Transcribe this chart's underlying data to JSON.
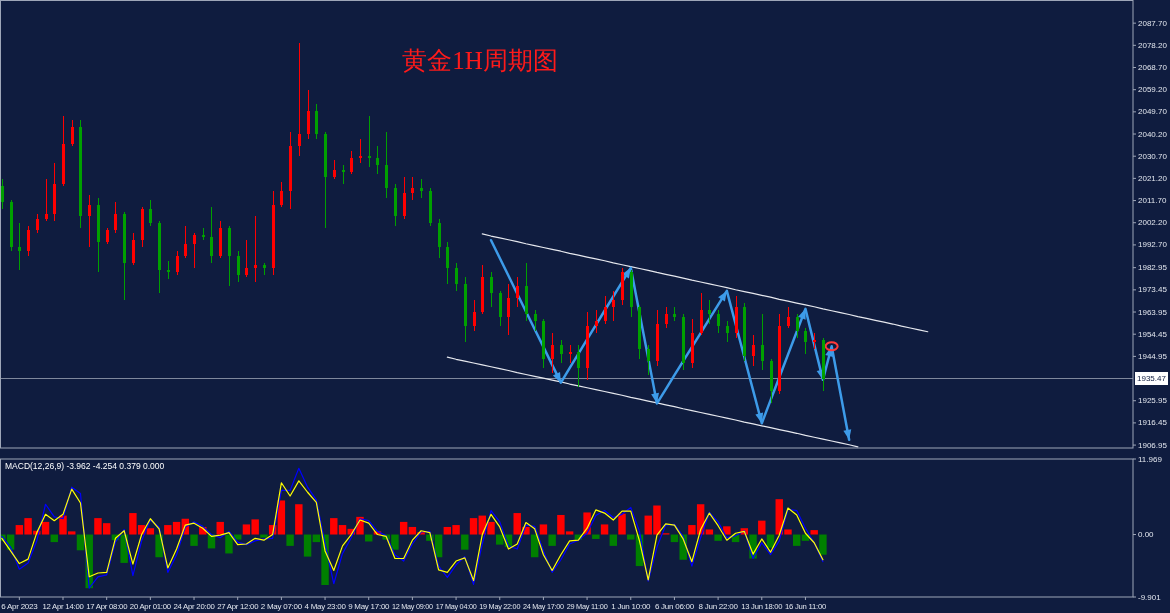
{
  "chart_data": [
    {
      "type": "candlestick",
      "title": "黄金1H周期图",
      "categories": [
        null,
        null,
        null,
        null,
        null,
        null,
        null,
        null,
        null,
        null,
        null,
        null,
        null,
        null,
        null,
        null,
        null,
        null,
        null,
        null,
        null,
        null,
        null,
        null,
        null,
        null,
        null,
        null,
        null,
        null,
        null,
        null,
        null,
        null,
        null,
        null,
        null,
        null,
        null,
        null,
        null,
        null,
        null,
        null,
        null,
        null,
        null,
        null,
        null,
        null,
        null,
        null,
        null,
        null,
        null,
        null,
        null,
        null,
        null,
        null,
        null,
        null,
        null,
        null,
        null,
        null,
        null,
        null,
        null,
        null,
        null,
        null,
        null,
        null,
        null,
        null,
        null,
        null,
        null,
        null,
        null,
        null,
        null,
        null,
        null,
        null,
        null,
        null,
        null,
        null,
        null,
        null,
        null,
        null,
        null,
        null,
        null,
        null,
        null,
        null,
        null,
        null,
        null,
        null,
        null,
        null,
        null,
        null,
        null,
        null,
        null,
        null,
        null,
        null,
        null,
        null,
        null,
        null,
        null,
        null,
        null,
        null,
        null,
        null,
        null,
        null,
        null,
        null,
        null,
        null
      ],
      "ohlc": [
        [
          2018,
          2021,
          2008,
          2011
        ],
        [
          2011,
          2012,
          1990,
          1992
        ],
        [
          1992,
          2002,
          1982,
          1990
        ],
        [
          1990,
          2001,
          1988,
          1999
        ],
        [
          1999,
          2006,
          1998,
          2004
        ],
        [
          2004,
          2021,
          2003,
          2006
        ],
        [
          2006,
          2028,
          2003,
          2019
        ],
        [
          2019,
          2048,
          2018,
          2036
        ],
        [
          2036,
          2046,
          2035,
          2043
        ],
        [
          2043,
          2046,
          2000,
          2005
        ],
        [
          2005,
          2014,
          1992,
          2010
        ],
        [
          2010,
          2013,
          1981,
          1994
        ],
        [
          1994,
          2000,
          1993,
          1999
        ],
        [
          1999,
          2011,
          1998,
          2006
        ],
        [
          2006,
          2007,
          1969,
          1985
        ],
        [
          1985,
          1998,
          1984,
          1995
        ],
        [
          1995,
          2009,
          1992,
          2008
        ],
        [
          2008,
          2012,
          2001,
          2002
        ],
        [
          2002,
          2003,
          1972,
          1982
        ],
        [
          1982,
          1986,
          1978,
          1981
        ],
        [
          1981,
          1990,
          1980,
          1988
        ],
        [
          1988,
          2001,
          1987,
          1993
        ],
        [
          1993,
          1998,
          1983,
          1997
        ],
        [
          1997,
          2000,
          1995,
          1996
        ],
        [
          1996,
          2009,
          1985,
          1988
        ],
        [
          1988,
          2003,
          1987,
          2000
        ],
        [
          2000,
          2001,
          1975,
          1988
        ],
        [
          1988,
          1990,
          1977,
          1980
        ],
        [
          1980,
          1995,
          1979,
          1983
        ],
        [
          1983,
          2005,
          1977,
          1984
        ],
        [
          1984,
          1985,
          1980,
          1983
        ],
        [
          1983,
          2016,
          1980,
          2010
        ],
        [
          2010,
          2019.5,
          2009,
          2016
        ],
        [
          2016,
          2041,
          2008,
          2035
        ],
        [
          2035,
          2079,
          2031,
          2040
        ],
        [
          2040,
          2059,
          2038,
          2050
        ],
        [
          2050,
          2053,
          2038,
          2040
        ],
        [
          2040,
          2041,
          2000,
          2022
        ],
        [
          2022,
          2029,
          2021,
          2025
        ],
        [
          2025,
          2027,
          2019,
          2024
        ],
        [
          2024,
          2033,
          2023,
          2030
        ],
        [
          2030,
          2038,
          2028,
          2031
        ],
        [
          2031,
          2048,
          2026,
          2030
        ],
        [
          2030,
          2035,
          2023,
          2027
        ],
        [
          2027,
          2041,
          2013,
          2017
        ],
        [
          2017,
          2019,
          2001,
          2005
        ],
        [
          2005,
          2022,
          2004,
          2015
        ],
        [
          2015,
          2022,
          2012,
          2017
        ],
        [
          2017,
          2021,
          2013,
          2016
        ],
        [
          2016,
          2017,
          2001,
          2002
        ],
        [
          2002,
          2004,
          1987,
          1992
        ],
        [
          1992,
          1994,
          1976,
          1983
        ],
        [
          1983,
          1985,
          1973,
          1976
        ],
        [
          1976,
          1979,
          1951,
          1958
        ],
        [
          1958,
          1969,
          1956,
          1964
        ],
        [
          1964,
          1984,
          1963,
          1979
        ],
        [
          1979,
          1981,
          1966,
          1972
        ],
        [
          1972,
          1973,
          1958,
          1962
        ],
        [
          1962,
          1976,
          1954,
          1970
        ],
        [
          1970,
          1979,
          1966,
          1975
        ],
        [
          1975,
          1985,
          1960,
          1963
        ],
        [
          1963,
          1965,
          1956,
          1960
        ],
        [
          1960,
          1961,
          1940,
          1944
        ],
        [
          1944,
          1955,
          1938,
          1950
        ],
        [
          1950,
          1952,
          1942,
          1946
        ],
        [
          1946,
          1950,
          1942,
          1947
        ],
        [
          1947,
          1950,
          1932,
          1940
        ],
        [
          1940,
          1964,
          1935,
          1958
        ],
        [
          1958,
          1965,
          1955,
          1960
        ],
        [
          1960,
          1971,
          1959,
          1966
        ],
        [
          1966,
          1973,
          1960,
          1969
        ],
        [
          1969,
          1983,
          1967,
          1981
        ],
        [
          1981,
          1982,
          1962,
          1966
        ],
        [
          1966,
          1967,
          1944,
          1948
        ],
        [
          1948,
          1950,
          1937,
          1943
        ],
        [
          1943,
          1965,
          1941,
          1959
        ],
        [
          1959,
          1966,
          1957,
          1963
        ],
        [
          1963,
          1966,
          1960,
          1962
        ],
        [
          1962,
          1963,
          1939,
          1942
        ],
        [
          1942,
          1961,
          1940,
          1955
        ],
        [
          1955,
          1972,
          1954,
          1965
        ],
        [
          1965,
          1969,
          1959,
          1963
        ],
        [
          1963,
          1965,
          1955,
          1958
        ],
        [
          1958,
          1960,
          1951,
          1955
        ],
        [
          1955,
          1971,
          1953,
          1966
        ],
        [
          1966,
          1968,
          1943,
          1945
        ],
        [
          1945,
          1954,
          1941,
          1950
        ],
        [
          1950,
          1963,
          1939,
          1943
        ],
        [
          1943,
          1944,
          1925,
          1930
        ],
        [
          1930,
          1963,
          1929,
          1958
        ],
        [
          1958,
          1966,
          1957,
          1962
        ],
        [
          1962,
          1963,
          1953,
          1956
        ],
        [
          1956,
          1957,
          1946,
          1951
        ],
        [
          1951,
          1955,
          1948,
          1952
        ],
        [
          1952,
          1953,
          1930,
          1935.47
        ],
        null,
        null,
        null,
        null,
        null,
        null,
        null,
        null,
        null,
        null,
        null,
        null,
        null,
        null,
        null,
        null,
        null,
        null,
        null,
        null,
        null,
        null,
        null,
        null,
        null,
        null,
        null,
        null,
        null,
        null,
        null,
        null,
        null,
        null,
        null
      ],
      "colors": [
        "#00a000",
        "#00a000",
        "#00a000",
        "#ff0000",
        "#ff0000",
        "#ff0000",
        "#ff0000",
        "#ff0000",
        "#ff0000",
        "#00a000",
        "#ff0000",
        "#00a000",
        "#ff0000",
        "#ff0000",
        "#00a000",
        "#ff0000",
        "#ff0000",
        "#00a000",
        "#00a000",
        "#00a000",
        "#ff0000",
        "#ff0000",
        "#ff0000",
        "#00a000",
        "#00a000",
        "#ff0000",
        "#00a000",
        "#00a000",
        "#ff0000",
        "#ff0000",
        "#00a000",
        "#ff0000",
        "#ff0000",
        "#ff0000",
        "#ff0000",
        "#ff0000",
        "#00a000",
        "#00a000",
        "#ff0000",
        "#00a000",
        "#ff0000",
        "#ff0000",
        "#00a000",
        "#00a000",
        "#00a000",
        "#00a000",
        "#ff0000",
        "#ff0000",
        "#00a000",
        "#00a000",
        "#00a000",
        "#00a000",
        "#00a000",
        "#00a000",
        "#ff0000",
        "#ff0000",
        "#00a000",
        "#00a000",
        "#ff0000",
        "#ff0000",
        "#00a000",
        "#00a000",
        "#00a000",
        "#ff0000",
        "#00a000",
        "#ff0000",
        "#00a000",
        "#ff0000",
        "#ff0000",
        "#ff0000",
        "#ff0000",
        "#ff0000",
        "#00a000",
        "#00a000",
        "#00a000",
        "#ff0000",
        "#ff0000",
        "#00a000",
        "#00a000",
        "#ff0000",
        "#ff0000",
        "#00a000",
        "#00a000",
        "#00a000",
        "#ff0000",
        "#00a000",
        "#ff0000",
        "#00a000",
        "#00a000",
        "#ff0000",
        "#ff0000",
        "#00a000",
        "#00a000",
        "#ff0000",
        "#00a000",
        null,
        null,
        null,
        null,
        null,
        null,
        null,
        null,
        null,
        null,
        null,
        null,
        null,
        null,
        null,
        null,
        null,
        null,
        null,
        null,
        null,
        null,
        null,
        null,
        null,
        null,
        null,
        null,
        null,
        null,
        null,
        null,
        null,
        null,
        null
      ],
      "ylim": [
        1905.7,
        2097.4
      ],
      "yticks": [
        1906.95,
        1916.45,
        1925.95,
        1944.95,
        1954.45,
        1963.95,
        1973.45,
        1982.95,
        {
          "value": 1992.7,
          "label": "1992.70"
        },
        {
          "value": 2002.2,
          "label": "2002.20"
        },
        {
          "value": 2011.7,
          "label": "2011.70"
        },
        {
          "value": 2021.2,
          "label": "2021.20"
        },
        {
          "value": 2030.7,
          "label": "2030.70"
        },
        {
          "value": 2040.2,
          "label": "2040.20"
        },
        {
          "value": 2049.7,
          "label": "2049.70"
        },
        {
          "value": 2059.2,
          "label": "2059.20"
        },
        {
          "value": 2068.7,
          "label": "2068.70"
        },
        {
          "value": 2078.2,
          "label": "2078.20"
        },
        {
          "value": 2087.7,
          "label": "2087.70"
        }
      ],
      "tick_labels": "y",
      "ref_lines": [
        {
          "axis": "y",
          "value": 1935.47,
          "label": "1935.47",
          "color": "#7f889c"
        }
      ],
      "series": [
        {
          "type": "line",
          "color": "#e6e8ee",
          "values": [
            null,
            null,
            null,
            null,
            null,
            null,
            null,
            null,
            null,
            null,
            null,
            null,
            null,
            null,
            null,
            null,
            null,
            null,
            null,
            null,
            null,
            null,
            null,
            null,
            null,
            null,
            null,
            null,
            null,
            null,
            null,
            null,
            null,
            null,
            null,
            null,
            null,
            null,
            null,
            null,
            null,
            null,
            null,
            null,
            null,
            null,
            null,
            null,
            null,
            null,
            null,
            null,
            null,
            null,
            null,
            1997.4,
            1996.5,
            1995.7,
            1994.9,
            1994.1,
            1993.2,
            1992.4,
            1991.6,
            1990.8,
            1990.0,
            1989.1,
            1988.3,
            1987.5,
            1986.7,
            1985.9,
            1985.0,
            1984.2,
            1983.4,
            1982.6,
            1981.8,
            1980.9,
            1980.1,
            1979.3,
            1978.5,
            1977.6,
            1976.8,
            1976.0,
            1975.2,
            1974.4,
            1973.5,
            1972.7,
            1971.9,
            1971.1,
            1970.3,
            1969.4,
            1968.6,
            1967.8,
            1967.0,
            1966.2,
            1965.3,
            1964.5,
            1963.7,
            1962.9,
            1962.0,
            1961.2,
            1960.4,
            1959.6,
            1958.8,
            1957.9,
            1957.1,
            1956.3,
            1955.5,
            null,
            null,
            null,
            null,
            null,
            null,
            null,
            null,
            null,
            null,
            null,
            null,
            null,
            null,
            null,
            null,
            null,
            null,
            null,
            null,
            null,
            null,
            null
          ]
        },
        {
          "type": "line",
          "color": "#e6e8ee",
          "values": [
            null,
            null,
            null,
            null,
            null,
            null,
            null,
            null,
            null,
            null,
            null,
            null,
            null,
            null,
            null,
            null,
            null,
            null,
            null,
            null,
            null,
            null,
            null,
            null,
            null,
            null,
            null,
            null,
            null,
            null,
            null,
            null,
            null,
            null,
            null,
            null,
            null,
            null,
            null,
            null,
            null,
            null,
            null,
            null,
            null,
            null,
            null,
            null,
            null,
            null,
            null,
            1944.6,
            1943.7,
            1942.9,
            1942.1,
            1941.3,
            1940.5,
            1939.7,
            1938.9,
            1938.0,
            1937.2,
            1936.4,
            1935.6,
            1934.8,
            1934.0,
            1933.1,
            1932.3,
            1931.5,
            1930.7,
            1929.9,
            1929.1,
            1928.3,
            1927.4,
            1926.6,
            1925.8,
            1925.0,
            1924.2,
            1923.4,
            1922.5,
            1921.7,
            1920.9,
            1920.1,
            1919.3,
            1918.5,
            1917.7,
            1916.8,
            1916.0,
            1915.2,
            1914.4,
            1913.6,
            1912.8,
            1912.0,
            1911.1,
            1910.3,
            1909.5,
            1908.7,
            1907.9,
            1907.1,
            1906.2,
            null,
            null,
            null,
            null,
            null,
            null,
            null,
            null,
            null,
            null,
            null,
            null,
            null,
            null,
            null,
            null,
            null,
            null,
            null,
            null,
            null,
            null,
            null,
            null,
            null,
            null,
            null,
            null,
            null,
            null,
            null
          ]
        },
        {
          "type": "line",
          "color": "#3d9be9",
          "values": [
            null,
            null,
            null,
            null,
            null,
            null,
            null,
            null,
            null,
            null,
            null,
            null,
            null,
            null,
            null,
            null,
            null,
            null,
            null,
            null,
            null,
            null,
            null,
            null,
            null,
            null,
            null,
            null,
            null,
            null,
            null,
            null,
            null,
            null,
            null,
            null,
            null,
            null,
            null,
            null,
            null,
            null,
            null,
            null,
            null,
            null,
            null,
            null,
            null,
            null,
            null,
            null,
            null,
            null,
            null,
            null,
            1994.7,
            1987.1,
            1979.5,
            1971.8,
            1964.2,
            1956.6,
            1949.0,
            1941.3,
            1933.7,
            1939.9,
            1946.0,
            1952.2,
            1958.3,
            1964.5,
            1970.6,
            1976.8,
            1982.9,
            1963.5,
            1944.2,
            1924.8,
            1930.8,
            1936.9,
            1942.9,
            1948.9,
            1954.9,
            1961.0,
            1967.0,
            1973.0,
            1958.8,
            1944.7,
            1930.5,
            1916.3,
            1926.1,
            1935.9,
            1945.7,
            1955.5,
            1965.3,
            1950.1,
            1934.9,
            1949.3,
            1929.3,
            1909.2,
            null,
            null,
            null,
            null,
            null,
            null,
            null,
            null,
            null,
            null,
            null,
            null,
            null,
            null,
            null,
            null,
            null,
            null,
            null,
            null,
            null,
            null,
            null,
            null,
            null,
            null,
            null,
            null,
            null,
            null,
            null,
            null
          ]
        },
        {
          "type": "scatter",
          "color": "#ff3b3b",
          "marker": "circle",
          "values": [
            null,
            null,
            null,
            null,
            null,
            null,
            null,
            null,
            null,
            null,
            null,
            null,
            null,
            null,
            null,
            null,
            null,
            null,
            null,
            null,
            null,
            null,
            null,
            null,
            null,
            null,
            null,
            null,
            null,
            null,
            null,
            null,
            null,
            null,
            null,
            null,
            null,
            null,
            null,
            null,
            null,
            null,
            null,
            null,
            null,
            null,
            null,
            null,
            null,
            null,
            null,
            null,
            null,
            null,
            null,
            null,
            null,
            null,
            null,
            null,
            null,
            null,
            null,
            null,
            null,
            null,
            null,
            null,
            null,
            null,
            null,
            null,
            null,
            null,
            null,
            null,
            null,
            null,
            null,
            null,
            null,
            null,
            null,
            null,
            null,
            null,
            null,
            null,
            null,
            null,
            null,
            null,
            null,
            null,
            null,
            1949.3,
            null,
            null,
            null,
            null,
            null,
            null,
            null,
            null,
            null,
            null,
            null,
            null,
            null,
            null,
            null,
            null,
            null,
            null,
            null,
            null,
            null,
            null,
            null,
            null,
            null,
            null,
            null,
            null,
            null,
            null,
            null,
            null,
            null,
            null
          ]
        }
      ]
    },
    {
      "type": "bar",
      "title": "MACD(12,26,9) -3.962 -4.254 0.379 0.000",
      "categories": [
        null,
        null,
        "6 Apr 2023",
        null,
        null,
        null,
        null,
        "12 Apr 14:00",
        null,
        null,
        null,
        null,
        "17 Apr 08:00",
        null,
        null,
        null,
        null,
        "20 Apr 01:00",
        null,
        null,
        null,
        null,
        "24 Apr 20:00",
        null,
        null,
        null,
        null,
        "27 Apr 12:00",
        null,
        null,
        null,
        null,
        "2 May 07:00",
        null,
        null,
        null,
        null,
        "4 May 23:00",
        null,
        null,
        null,
        null,
        "9 May 17:00",
        null,
        null,
        null,
        null,
        "12 May 09:00",
        null,
        null,
        null,
        null,
        "17 May 04:00",
        null,
        null,
        null,
        null,
        "19 May 22:00",
        null,
        null,
        null,
        null,
        "24 May 17:00",
        null,
        null,
        null,
        null,
        "29 May 11:00",
        null,
        null,
        null,
        null,
        "1 Jun 10:00",
        null,
        null,
        null,
        null,
        "6 Jun 06:00",
        null,
        null,
        null,
        null,
        "8 Jun 22:00",
        null,
        null,
        null,
        null,
        "13 Jun 18:00",
        null,
        null,
        null,
        null,
        "16 Jun 11:00",
        null,
        null,
        null,
        null,
        null,
        null,
        null,
        null,
        null,
        null,
        null,
        null,
        null,
        null,
        null,
        null,
        null,
        null,
        null,
        null,
        null,
        null,
        null,
        null,
        null,
        null,
        null,
        null,
        null,
        null,
        null,
        null,
        null,
        null,
        null,
        null,
        null
      ],
      "ylim": [
        -9.901,
        11.969
      ],
      "yticks": [
        -9.901,
        {
          "value": 0,
          "label": "0.00"
        },
        11.969
      ],
      "series": [
        {
          "color": "#ff0000",
          "values": [
            null,
            null,
            1.5,
            2.6,
            0.6,
            2.0,
            null,
            3.0,
            0.5,
            null,
            null,
            2.6,
            1.8,
            null,
            null,
            3.4,
            1.5,
            1.0,
            null,
            1.5,
            2.0,
            2.5,
            null,
            1.2,
            null,
            2.0,
            null,
            null,
            1.6,
            2.4,
            null,
            1.5,
            5.4,
            null,
            4.8,
            null,
            null,
            null,
            2.6,
            1.5,
            0.9,
            2.8,
            null,
            0.5,
            null,
            null,
            2.0,
            1.2,
            0.4,
            null,
            null,
            1.2,
            1.5,
            null,
            2.6,
            3.0,
            2.0,
            null,
            null,
            3.4,
            1.2,
            null,
            1.6,
            null,
            3.1,
            0.5,
            null,
            3.5,
            null,
            1.6,
            null,
            3.3,
            null,
            null,
            3.0,
            4.6,
            0.2,
            null,
            null,
            1.5,
            4.8,
            0.8,
            null,
            1.3,
            null,
            1.0,
            null,
            2.2,
            null,
            5.6,
            0.8,
            null,
            null,
            0.7,
            null,
            null,
            null,
            null,
            null,
            null,
            null,
            null,
            null,
            null,
            null,
            null,
            null,
            null,
            null,
            null,
            null,
            null,
            null,
            null,
            null,
            null,
            null,
            null,
            null,
            null,
            null,
            null,
            null,
            null,
            null,
            null,
            null,
            null,
            null,
            null
          ]
        },
        {
          "color": "#008000",
          "values": [
            -1.0,
            -2.4,
            null,
            null,
            null,
            null,
            -1.2,
            null,
            null,
            -2.5,
            -8.5,
            null,
            null,
            -0.9,
            -4.5,
            null,
            null,
            null,
            -3.6,
            null,
            null,
            null,
            -1.8,
            null,
            -2.2,
            null,
            -3.0,
            -0.8,
            null,
            null,
            -0.5,
            null,
            null,
            -1.8,
            null,
            -3.5,
            -1.2,
            -8.0,
            null,
            null,
            null,
            null,
            -1.1,
            null,
            -0.8,
            -2.4,
            null,
            null,
            null,
            -1.0,
            -3.6,
            null,
            null,
            -2.4,
            null,
            null,
            null,
            -1.6,
            -2.0,
            null,
            null,
            -3.6,
            null,
            -1.8,
            null,
            null,
            -0.8,
            null,
            -0.7,
            null,
            -1.8,
            null,
            -0.8,
            -5.0,
            null,
            null,
            null,
            -1.2,
            -4.0,
            null,
            null,
            null,
            -1.0,
            null,
            -1.2,
            null,
            -3.8,
            null,
            -2.1,
            null,
            null,
            -1.8,
            -1.0,
            null,
            -3.2,
            null,
            null,
            null,
            null,
            null,
            null,
            null,
            null,
            null,
            null,
            null,
            null,
            null,
            null,
            null,
            null,
            null,
            null,
            null,
            null,
            null,
            null,
            null,
            null,
            null,
            null,
            null,
            null,
            null,
            null,
            null,
            null,
            null,
            null,
            null
          ]
        },
        {
          "type": "line",
          "color": "#0000ff",
          "values": [
            -0.3,
            -2.0,
            -5.5,
            -4.5,
            -1.0,
            4.8,
            2.8,
            2.5,
            7.5,
            6.5,
            -8.5,
            -6.7,
            -6.4,
            -1.2,
            0.8,
            -6.5,
            -1.0,
            2.3,
            1.2,
            -6.0,
            -3.2,
            1.2,
            2.0,
            1.3,
            0.0,
            -0.5,
            0.5,
            -1.2,
            -1.6,
            -1.0,
            -0.7,
            -0.6,
            7.0,
            7.0,
            10.5,
            7.5,
            5.5,
            -1.5,
            -7.8,
            -3.0,
            -0.5,
            2.5,
            2.2,
            0.5,
            -0.2,
            -3.2,
            -4.2,
            -1.5,
            0.4,
            0.5,
            -5.0,
            -6.8,
            -4.8,
            -3.5,
            -7.9,
            -1.5,
            3.8,
            2.0,
            -1.8,
            -2.3,
            1.5,
            1.3,
            -2.6,
            -6.0,
            -4.0,
            -1.5,
            -0.9,
            0.2,
            3.0,
            3.8,
            2.7,
            3.2,
            4.3,
            0.5,
            -7.4,
            -2.0,
            1.5,
            1.6,
            -0.3,
            -5.0,
            -0.5,
            3.5,
            2.0,
            -0.5,
            -0.2,
            0.6,
            -3.8,
            -1.3,
            -3.2,
            -1.0,
            4.0,
            3.8,
            1.0,
            -1.3,
            -4.3,
            null,
            null,
            null,
            null,
            null,
            null,
            null,
            null,
            null,
            null,
            null,
            null,
            null,
            null,
            null,
            null,
            null,
            null,
            null,
            null,
            null,
            null,
            null,
            null,
            null,
            null,
            null,
            null,
            null,
            null,
            null,
            null,
            null,
            null,
            null
          ]
        },
        {
          "type": "line",
          "color": "#ffff00",
          "values": [
            -0.6,
            -2.6,
            -4.6,
            -3.9,
            0.3,
            3.2,
            2.2,
            3.2,
            7.2,
            5.0,
            -6.7,
            -6.1,
            -6.0,
            -0.6,
            0.6,
            -4.7,
            0.0,
            2.5,
            0.9,
            -5.3,
            -2.3,
            1.5,
            1.8,
            1.0,
            -0.3,
            -0.1,
            0.3,
            -1.6,
            -1.5,
            -0.6,
            -0.9,
            0.0,
            8.2,
            6.1,
            8.5,
            6.7,
            5.1,
            -2.6,
            -5.7,
            -1.8,
            0.0,
            2.3,
            1.8,
            0.0,
            -0.3,
            -3.8,
            -3.8,
            -0.9,
            0.6,
            0.3,
            -5.6,
            -6.0,
            -4.2,
            -3.7,
            -7.3,
            0.0,
            3.2,
            1.2,
            -2.3,
            -1.5,
            1.9,
            0.9,
            -3.2,
            -5.7,
            -3.2,
            -1.0,
            -0.9,
            1.0,
            3.9,
            3.4,
            2.3,
            3.7,
            3.7,
            -1.0,
            -7.2,
            -0.1,
            1.7,
            1.5,
            -0.7,
            -4.3,
            0.8,
            3.4,
            1.4,
            -0.9,
            0.2,
            0.5,
            -3.1,
            -0.7,
            -2.8,
            -0.1,
            4.2,
            3.1,
            0.2,
            -1.3,
            -4.0,
            null,
            null,
            null,
            null,
            null,
            null,
            null,
            null,
            null,
            null,
            null,
            null,
            null,
            null,
            null,
            null,
            null,
            null,
            null,
            null,
            null,
            null,
            null,
            null,
            null,
            null,
            null,
            null,
            null,
            null,
            null,
            null,
            null,
            null,
            null
          ]
        }
      ]
    }
  ]
}
